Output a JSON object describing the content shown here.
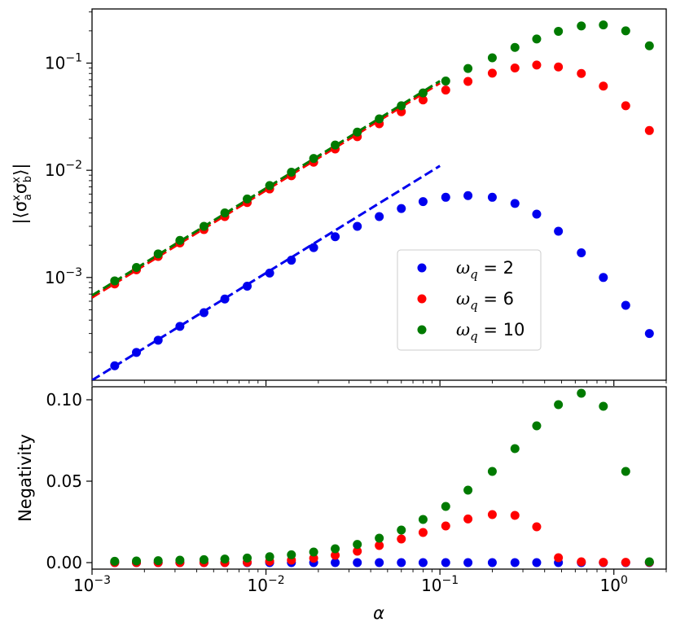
{
  "chart_data": [
    {
      "type": "scatter",
      "panel": "top",
      "xscale": "log",
      "yscale": "log",
      "xlim": [
        0.001,
        2.0
      ],
      "ylim": [
        0.00011,
        0.32
      ],
      "xlabel": "",
      "ylabel": "|⟨σ_a^x σ_b^x⟩|",
      "ylabel_parts": {
        "open": "|⟨σ",
        "sub1": "a",
        "sup1": "x",
        "mid": "σ",
        "sub2": "b",
        "sup2": "x",
        "close": "⟩|"
      },
      "yticks": [
        {
          "value": 0.001,
          "base": "10",
          "exp": "−3"
        },
        {
          "value": 0.01,
          "base": "10",
          "exp": "−2"
        },
        {
          "value": 0.1,
          "base": "10",
          "exp": "−1"
        }
      ],
      "legend": {
        "position": "lower-right"
      },
      "x": [
        0.00135,
        0.0018,
        0.0024,
        0.0032,
        0.0044,
        0.0058,
        0.0078,
        0.0105,
        0.014,
        0.0188,
        0.025,
        0.0335,
        0.0448,
        0.06,
        0.08,
        0.108,
        0.145,
        0.2,
        0.27,
        0.36,
        0.48,
        0.65,
        0.87,
        1.17,
        1.6
      ],
      "series": [
        {
          "name": "ω_q = 2",
          "label_prefix": "ω",
          "label_sub": "q",
          "label_value": " = 2",
          "color": "#0000ee",
          "values": [
            0.00015,
            0.0002,
            0.00026,
            0.00035,
            0.00047,
            0.00063,
            0.00083,
            0.0011,
            0.00145,
            0.0019,
            0.0024,
            0.003,
            0.0037,
            0.0044,
            0.0051,
            0.0056,
            0.0058,
            0.0056,
            0.0049,
            0.0039,
            0.0027,
            0.0017,
            0.001,
            0.00055,
            0.0003
          ],
          "fit_line": {
            "x": [
              0.001,
              0.1
            ],
            "y": [
              0.00011,
              0.011
            ]
          }
        },
        {
          "name": "ω_q = 6",
          "label_prefix": "ω",
          "label_sub": "q",
          "label_value": " = 6",
          "color": "#ff0000",
          "values": [
            0.00087,
            0.00118,
            0.00157,
            0.0021,
            0.0028,
            0.0037,
            0.005,
            0.0067,
            0.0089,
            0.0119,
            0.0158,
            0.0206,
            0.0272,
            0.0352,
            0.0453,
            0.056,
            0.0675,
            0.0805,
            0.09,
            0.096,
            0.092,
            0.08,
            0.061,
            0.04,
            0.0235
          ],
          "fit_line": {
            "x": [
              0.001,
              0.1
            ],
            "y": [
              0.00065,
              0.065
            ]
          }
        },
        {
          "name": "ω_q = 10",
          "label_prefix": "ω",
          "label_sub": "q",
          "label_value": " = 10",
          "color": "#007a00",
          "values": [
            0.00093,
            0.00124,
            0.00166,
            0.00222,
            0.003,
            0.004,
            0.0054,
            0.0072,
            0.0096,
            0.0129,
            0.0172,
            0.0227,
            0.0302,
            0.04,
            0.0527,
            0.068,
            0.089,
            0.112,
            0.14,
            0.168,
            0.198,
            0.222,
            0.227,
            0.2,
            0.145
          ],
          "fit_line": {
            "x": [
              0.001,
              0.1
            ],
            "y": [
              0.00068,
              0.068
            ]
          }
        }
      ]
    },
    {
      "type": "scatter",
      "panel": "bottom",
      "xscale": "log",
      "yscale": "linear",
      "xlim": [
        0.001,
        2.0
      ],
      "ylim": [
        -0.004,
        0.108
      ],
      "xlabel": "α",
      "ylabel": "Negativity",
      "yticks": [
        {
          "value": 0.0,
          "label": "0.00"
        },
        {
          "value": 0.05,
          "label": "0.05"
        },
        {
          "value": 0.1,
          "label": "0.10"
        }
      ],
      "xticks": [
        {
          "value": 0.001,
          "base": "10",
          "exp": "−3"
        },
        {
          "value": 0.01,
          "base": "10",
          "exp": "−2"
        },
        {
          "value": 0.1,
          "base": "10",
          "exp": "−1"
        },
        {
          "value": 1.0,
          "base": "10",
          "exp": "0"
        }
      ],
      "x": [
        0.00135,
        0.0018,
        0.0024,
        0.0032,
        0.0044,
        0.0058,
        0.0078,
        0.0105,
        0.014,
        0.0188,
        0.025,
        0.0335,
        0.0448,
        0.06,
        0.08,
        0.108,
        0.145,
        0.2,
        0.27,
        0.36,
        0.48,
        0.65,
        0.87,
        1.17,
        1.6
      ],
      "series": [
        {
          "name": "ω_q = 2",
          "color": "#0000ee",
          "values": [
            0,
            0,
            0,
            0,
            0,
            0,
            0,
            0,
            0,
            0,
            0,
            0,
            0,
            0,
            0,
            0,
            0,
            0,
            0,
            0,
            0,
            0,
            0,
            0,
            0
          ]
        },
        {
          "name": "ω_q = 6",
          "color": "#ff0000",
          "values": [
            0,
            0,
            0,
            0,
            0,
            0,
            0.0002,
            0.0008,
            0.0015,
            0.0027,
            0.0045,
            0.007,
            0.0105,
            0.0145,
            0.0185,
            0.0225,
            0.0268,
            0.0295,
            0.029,
            0.022,
            0.003,
            0.0005,
            0.0002,
            0.0002,
            0.0002
          ]
        },
        {
          "name": "ω_q = 10",
          "color": "#007a00",
          "values": [
            0.0008,
            0.001,
            0.0012,
            0.0015,
            0.0018,
            0.0022,
            0.0028,
            0.0036,
            0.0048,
            0.0065,
            0.0085,
            0.0112,
            0.015,
            0.02,
            0.0265,
            0.0345,
            0.0445,
            0.056,
            0.07,
            0.084,
            0.097,
            0.104,
            0.096,
            0.056,
            0.0005
          ]
        }
      ]
    }
  ]
}
